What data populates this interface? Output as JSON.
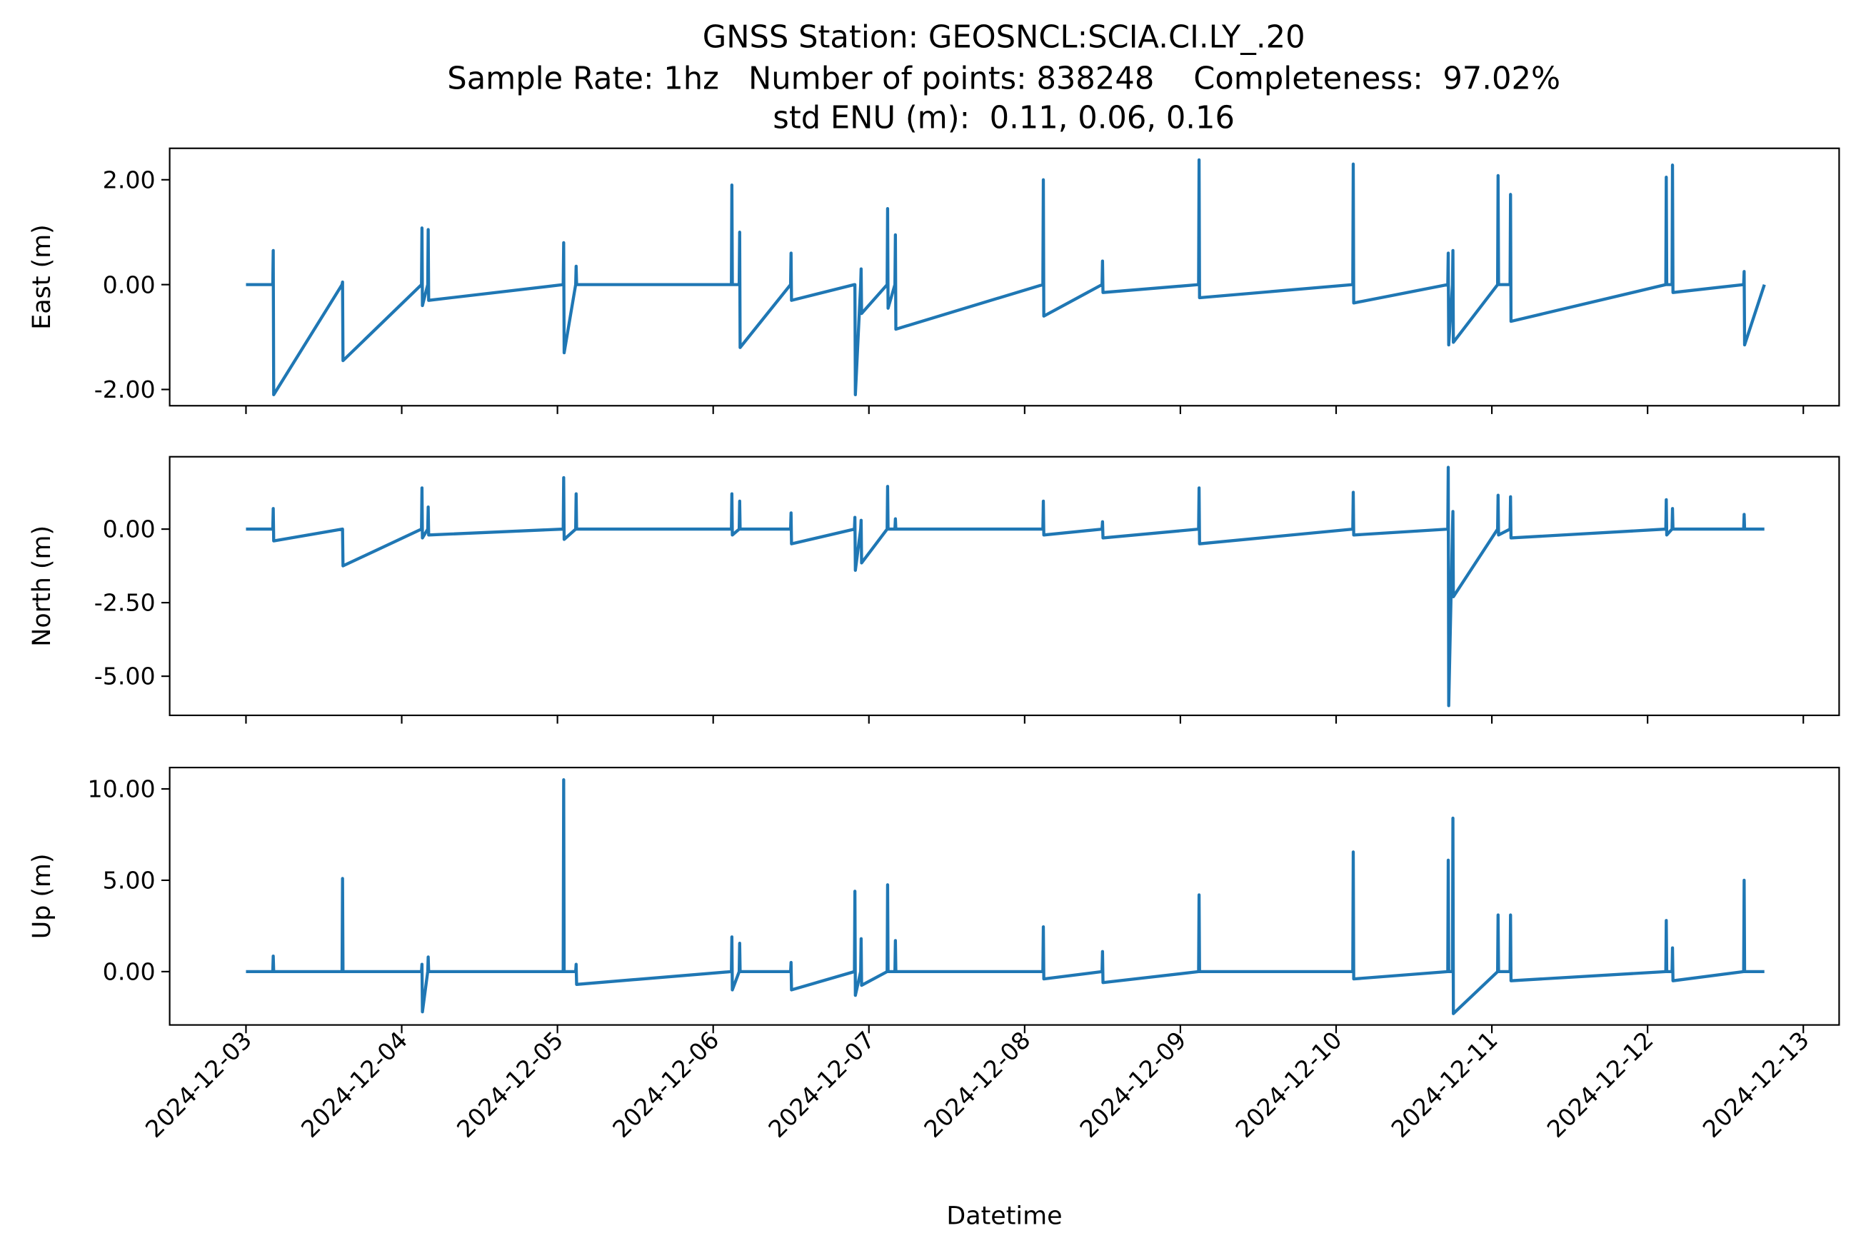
{
  "chart_data": [
    {
      "type": "line",
      "title": [
        "GNSS Station: GEOSNCL:SCIA.CI.LY_.20",
        "Sample Rate: 1hz   Number of points: 838248    Completeness:  97.02%",
        "std ENU (m):  0.11, 0.06, 0.16"
      ],
      "ylabel": "East (m)",
      "color": "#1f77b4",
      "xlim": [
        -0.49,
        10.23
      ],
      "ylim": [
        -2.31,
        2.6
      ],
      "yticks": [
        {
          "value": -2,
          "label": "-2.00"
        },
        {
          "value": 0,
          "label": "0.00"
        },
        {
          "value": 2,
          "label": "2.00"
        }
      ],
      "x": [
        0,
        0.172,
        0.175,
        0.178,
        0.617,
        0.62,
        0.623,
        1.127,
        1.13,
        1.133,
        1.167,
        1.17,
        1.173,
        2.037,
        2.04,
        2.043,
        2.117,
        2.12,
        2.123,
        3.117,
        3.12,
        3.123,
        3.167,
        3.17,
        3.173,
        3.497,
        3.5,
        3.503,
        3.907,
        3.91,
        3.913,
        3.947,
        3.95,
        3.953,
        4.117,
        4.12,
        4.123,
        4.167,
        4.17,
        4.173,
        5.117,
        5.12,
        5.123,
        5.497,
        5.5,
        5.503,
        6.117,
        6.12,
        6.123,
        7.107,
        7.11,
        7.113,
        7.717,
        7.72,
        7.723,
        7.747,
        7.75,
        7.753,
        8.037,
        8.04,
        8.043,
        8.117,
        8.12,
        8.123,
        9.117,
        9.12,
        9.123,
        9.157,
        9.16,
        9.163,
        9.617,
        9.62,
        9.623,
        9.75
      ],
      "values": [
        0,
        0,
        0.65,
        -2.1,
        0,
        0.05,
        -1.45,
        0,
        1.08,
        -0.4,
        0,
        1.05,
        -0.3,
        0,
        0.8,
        -1.3,
        0,
        0.35,
        0,
        0,
        1.9,
        0,
        0,
        1.0,
        -1.2,
        0,
        0.6,
        -0.3,
        0,
        0,
        -2.1,
        0,
        0.3,
        -0.55,
        0,
        1.45,
        -0.45,
        0,
        0.95,
        -0.85,
        0,
        2.0,
        -0.6,
        0,
        0.45,
        -0.15,
        0,
        2.38,
        -0.25,
        0,
        2.3,
        -0.35,
        0,
        0.6,
        -1.15,
        0,
        0.65,
        -1.1,
        0,
        2.08,
        0,
        0,
        1.72,
        -0.7,
        0,
        2.05,
        0,
        0,
        2.28,
        -0.15,
        0,
        0.25,
        -1.15,
        0
      ]
    },
    {
      "type": "line",
      "ylabel": "North (m)",
      "color": "#1f77b4",
      "xlim": [
        -0.49,
        10.23
      ],
      "ylim": [
        -6.33,
        2.46
      ],
      "yticks": [
        {
          "value": -5,
          "label": "-5.00"
        },
        {
          "value": -2.5,
          "label": "-2.50"
        },
        {
          "value": 0,
          "label": "0.00"
        }
      ],
      "x": [
        0,
        0.172,
        0.175,
        0.178,
        0.617,
        0.62,
        0.623,
        1.127,
        1.13,
        1.133,
        1.167,
        1.17,
        1.173,
        2.037,
        2.04,
        2.043,
        2.117,
        2.12,
        2.123,
        3.117,
        3.12,
        3.123,
        3.167,
        3.17,
        3.173,
        3.497,
        3.5,
        3.503,
        3.907,
        3.91,
        3.913,
        3.947,
        3.95,
        3.953,
        4.117,
        4.12,
        4.123,
        4.167,
        4.17,
        4.173,
        5.117,
        5.12,
        5.123,
        5.497,
        5.5,
        5.503,
        6.117,
        6.12,
        6.123,
        7.107,
        7.11,
        7.113,
        7.717,
        7.72,
        7.723,
        7.747,
        7.75,
        7.753,
        8.037,
        8.04,
        8.043,
        8.117,
        8.12,
        8.123,
        9.117,
        9.12,
        9.123,
        9.157,
        9.16,
        9.163,
        9.617,
        9.62,
        9.623,
        9.75
      ],
      "values": [
        0,
        0,
        0.7,
        -0.4,
        0,
        0,
        -1.25,
        0,
        1.4,
        -0.3,
        0,
        0.75,
        -0.2,
        0,
        1.75,
        -0.35,
        0,
        1.2,
        0,
        0,
        1.2,
        -0.2,
        0,
        0.95,
        0,
        0,
        0.55,
        -0.5,
        0,
        0.4,
        -1.4,
        0,
        0.3,
        -1.15,
        0,
        1.45,
        0,
        0,
        0.35,
        0,
        0,
        0.95,
        -0.2,
        0,
        0.25,
        -0.3,
        0,
        1.4,
        -0.5,
        0,
        1.25,
        -0.2,
        0,
        2.1,
        -6.0,
        0,
        0.6,
        -2.3,
        0,
        1.15,
        -0.2,
        0,
        1.1,
        -0.3,
        0,
        1.0,
        -0.2,
        0,
        0.7,
        0,
        0,
        0.5,
        0,
        0
      ]
    },
    {
      "type": "line",
      "ylabel": "Up (m)",
      "xlabel": "Datetime",
      "color": "#1f77b4",
      "xlim": [
        -0.49,
        10.23
      ],
      "ylim": [
        -2.92,
        11.17
      ],
      "yticks": [
        {
          "value": 0,
          "label": "0.00"
        },
        {
          "value": 5,
          "label": "5.00"
        },
        {
          "value": 10,
          "label": "10.00"
        }
      ],
      "xticks": [
        {
          "value": 0,
          "label": "2024-12-03"
        },
        {
          "value": 1,
          "label": "2024-12-04"
        },
        {
          "value": 2,
          "label": "2024-12-05"
        },
        {
          "value": 3,
          "label": "2024-12-06"
        },
        {
          "value": 4,
          "label": "2024-12-07"
        },
        {
          "value": 5,
          "label": "2024-12-08"
        },
        {
          "value": 6,
          "label": "2024-12-09"
        },
        {
          "value": 7,
          "label": "2024-12-10"
        },
        {
          "value": 8,
          "label": "2024-12-11"
        },
        {
          "value": 9,
          "label": "2024-12-12"
        },
        {
          "value": 10,
          "label": "2024-12-13"
        }
      ],
      "x": [
        0,
        0.172,
        0.175,
        0.178,
        0.617,
        0.62,
        0.623,
        1.127,
        1.13,
        1.133,
        1.167,
        1.17,
        1.173,
        2.037,
        2.04,
        2.043,
        2.117,
        2.12,
        2.123,
        3.117,
        3.12,
        3.123,
        3.167,
        3.17,
        3.173,
        3.497,
        3.5,
        3.503,
        3.907,
        3.91,
        3.913,
        3.947,
        3.95,
        3.953,
        4.117,
        4.12,
        4.123,
        4.167,
        4.17,
        4.173,
        5.117,
        5.12,
        5.123,
        5.497,
        5.5,
        5.503,
        6.117,
        6.12,
        6.123,
        7.107,
        7.11,
        7.113,
        7.717,
        7.72,
        7.723,
        7.747,
        7.75,
        7.753,
        8.037,
        8.04,
        8.043,
        8.117,
        8.12,
        8.123,
        9.117,
        9.12,
        9.123,
        9.157,
        9.16,
        9.163,
        9.617,
        9.62,
        9.623,
        9.75
      ],
      "values": [
        0,
        0,
        0.85,
        0,
        0,
        5.1,
        0,
        0,
        0.4,
        -2.2,
        0,
        0.8,
        0,
        0,
        10.5,
        0,
        0,
        0.4,
        -0.7,
        0,
        1.9,
        -1.0,
        0,
        1.55,
        0,
        0,
        0.5,
        -1.0,
        0,
        4.4,
        -1.3,
        0,
        1.8,
        -0.75,
        0,
        4.75,
        0,
        0,
        1.7,
        0,
        0,
        2.45,
        -0.4,
        0,
        1.1,
        -0.6,
        0,
        4.2,
        0,
        0,
        6.55,
        -0.4,
        0,
        6.1,
        0,
        0,
        8.4,
        -2.3,
        0,
        3.1,
        0,
        0,
        3.1,
        -0.5,
        0,
        2.8,
        0,
        0,
        1.3,
        -0.5,
        0,
        5.0,
        0,
        0
      ]
    }
  ]
}
